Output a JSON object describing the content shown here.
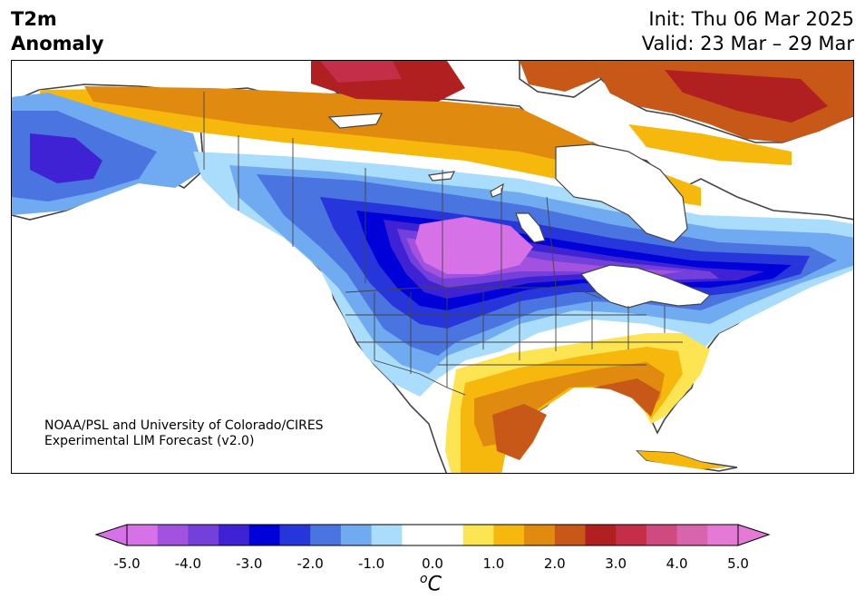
{
  "title": {
    "line1": "T2m",
    "line2": "Anomaly"
  },
  "dates": {
    "init": "Init: Thu 06 Mar 2025",
    "valid": "Valid: 23 Mar – 29 Mar"
  },
  "credit": {
    "line1": "NOAA/PSL and University of Colorado/CIRES",
    "line2": "Experimental LIM Forecast (v2.0)"
  },
  "colorbar": {
    "ticks": [
      "-5.0",
      "-4.0",
      "-3.0",
      "-2.0",
      "-1.0",
      "0.0",
      "1.0",
      "2.0",
      "3.0",
      "4.0",
      "5.0"
    ],
    "unit_sup": "o",
    "unit": "C",
    "colors": [
      "#d671e8",
      "#a352e0",
      "#7440dc",
      "#3f22d4",
      "#0000d8",
      "#2636da",
      "#4a74e0",
      "#70aaf0",
      "#aadcfc",
      "#ffffff",
      "#ffffff",
      "#fde452",
      "#f6b80c",
      "#e08a10",
      "#c85818",
      "#b02020",
      "#c42e46",
      "#cf4a7e",
      "#d864ac",
      "#e47ad6"
    ],
    "over_color": "#e47ad6",
    "under_color": "#d671e8"
  },
  "map": {
    "ocean_color": "#ffffff",
    "border_color": "#444444",
    "regions": [
      "Alaska",
      "Canada",
      "Contiguous United States",
      "Mexico",
      "Greenland",
      "Hudson Bay",
      "Great Lakes",
      "Cuba"
    ]
  }
}
